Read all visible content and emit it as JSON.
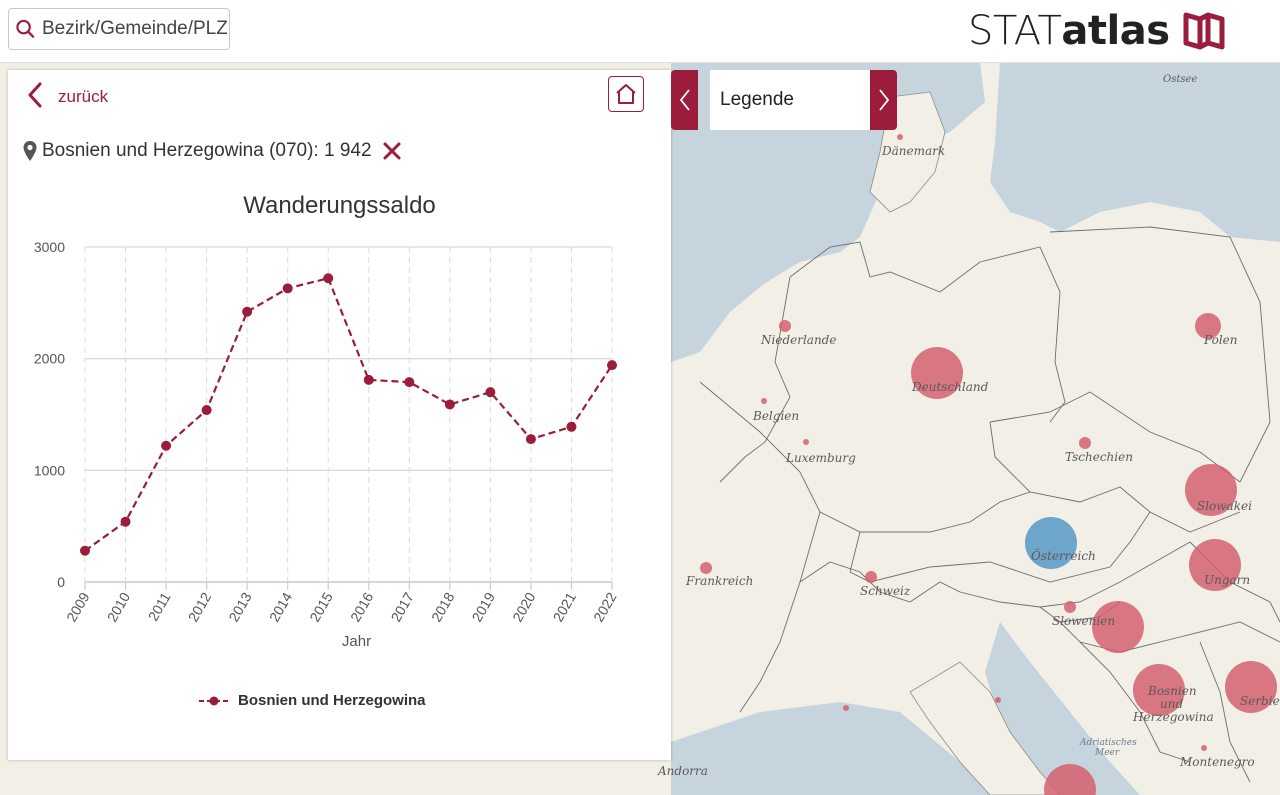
{
  "header": {
    "search_placeholder": "Bezirk/Gemeinde/PLZ",
    "brand_stat": "STAT",
    "brand_atlas": "atlas"
  },
  "panel": {
    "back_label": "zurück",
    "location": "Bosnien und Herzegowina (070): 1 942"
  },
  "legend_toggle": {
    "label": "Legende"
  },
  "map": {
    "labels": [
      "Ostsee",
      "Dänemark",
      "Niederlande",
      "Polen",
      "Deutschland",
      "Belgien",
      "Luxemburg",
      "Tschechien",
      "Slowakei",
      "Österreich",
      "Frankreich",
      "Schweiz",
      "Ungarn",
      "Slowenien",
      "Bosnien",
      "und",
      "Herzegowina",
      "Serbien",
      "Adriatisches",
      "Meer",
      "Andorra",
      "Montenegro"
    ]
  },
  "colors": {
    "accent": "#9b1c3b",
    "bubble_red": "#d4606e",
    "bubble_blue": "#5e9cc8"
  },
  "chart_data": {
    "type": "line",
    "title": "Wanderungssaldo",
    "xlabel": "Jahr",
    "ylabel": "",
    "x": [
      "2009",
      "2010",
      "2011",
      "2012",
      "2013",
      "2014",
      "2015",
      "2016",
      "2017",
      "2018",
      "2019",
      "2020",
      "2021",
      "2022"
    ],
    "series": [
      {
        "name": "Bosnien und Herzegowina",
        "values": [
          280,
          540,
          1220,
          1540,
          2420,
          2630,
          2720,
          1810,
          1790,
          1590,
          1700,
          1280,
          1390,
          1942
        ]
      }
    ],
    "ylim": [
      0,
      3000
    ],
    "yticks": [
      "0",
      "1000",
      "2000",
      "3000"
    ],
    "grid": true,
    "legend": "bottom"
  }
}
